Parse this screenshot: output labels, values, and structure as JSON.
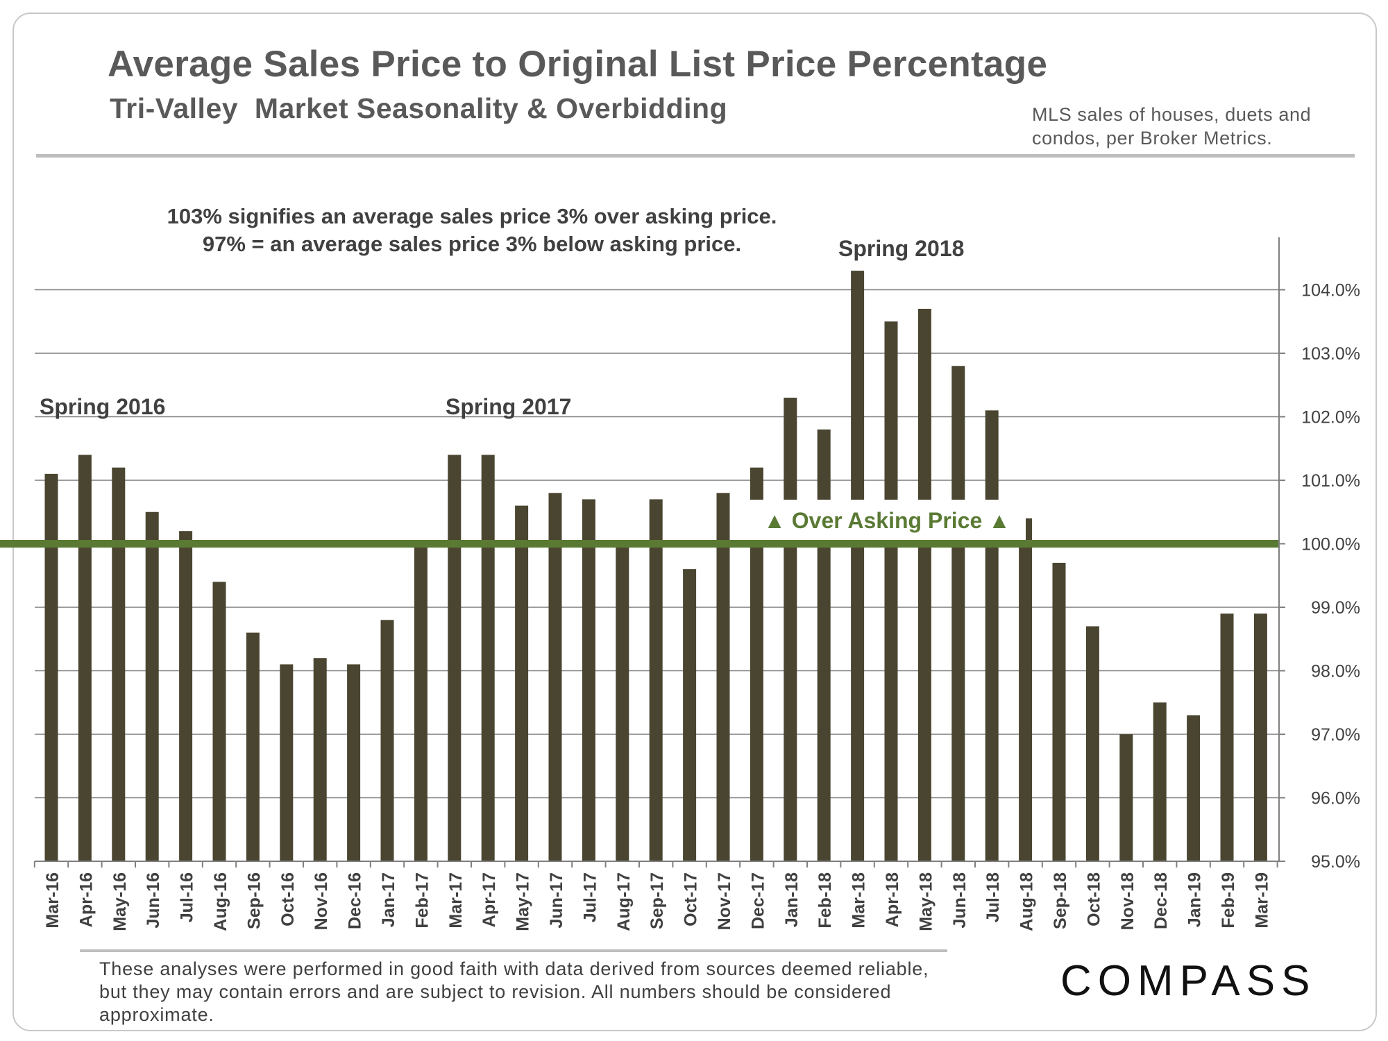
{
  "title": "Average Sales Price to Original List Price Percentage",
  "subtitle": "Tri-Valley  Market Seasonality & Overbidding",
  "source_note": "MLS sales of houses, duets and condos, per Broker Metrics.",
  "explanation": {
    "line1": "103% signifies an average sales price 3% over asking price.",
    "line2": "97% = an average sales price 3% below asking price."
  },
  "annotations": {
    "spring_2016": "Spring 2016",
    "spring_2017": "Spring 2017",
    "spring_2018": "Spring 2018",
    "over_asking": "▲ Over Asking Price ▲"
  },
  "disclaimer": "These analyses were performed in good faith with data derived from sources deemed reliable, but they may contain errors and are subject to revision. All numbers should be considered approximate.",
  "logo": "COMPASS",
  "colors": {
    "bar": "#4a4530",
    "reference_line": "#5a7a34",
    "annotation_green": "#5a7a34",
    "grid": "#7f7f7f"
  },
  "chart_data": {
    "type": "bar",
    "categories": [
      "Mar-16",
      "Apr-16",
      "May-16",
      "Jun-16",
      "Jul-16",
      "Aug-16",
      "Sep-16",
      "Oct-16",
      "Nov-16",
      "Dec-16",
      "Jan-17",
      "Feb-17",
      "Mar-17",
      "Apr-17",
      "May-17",
      "Jun-17",
      "Jul-17",
      "Aug-17",
      "Sep-17",
      "Oct-17",
      "Nov-17",
      "Dec-17",
      "Jan-18",
      "Feb-18",
      "Mar-18",
      "Apr-18",
      "May-18",
      "Jun-18",
      "Jul-18",
      "Aug-18",
      "Sep-18",
      "Oct-18",
      "Nov-18",
      "Dec-18",
      "Jan-19",
      "Feb-19",
      "Mar-19"
    ],
    "values": [
      101.1,
      101.4,
      101.2,
      100.5,
      100.2,
      99.4,
      98.6,
      98.1,
      98.2,
      98.1,
      98.8,
      100.0,
      101.4,
      101.4,
      100.6,
      100.8,
      100.7,
      100.0,
      100.7,
      99.6,
      100.8,
      101.2,
      102.3,
      101.8,
      104.3,
      103.5,
      103.7,
      102.8,
      102.1,
      100.4,
      99.7,
      98.7,
      97.0,
      97.5,
      97.3,
      98.9,
      98.9
    ],
    "ylim": [
      95,
      104.8
    ],
    "yticks": [
      95,
      96,
      97,
      98,
      99,
      100,
      101,
      102,
      103,
      104
    ],
    "ytick_labels": [
      "95.0%",
      "96.0%",
      "97.0%",
      "98.0%",
      "99.0%",
      "100.0%",
      "101.0%",
      "102.0%",
      "103.0%",
      "104.0%"
    ],
    "reference_line": 100,
    "grid": true,
    "y_axis_side": "right"
  }
}
